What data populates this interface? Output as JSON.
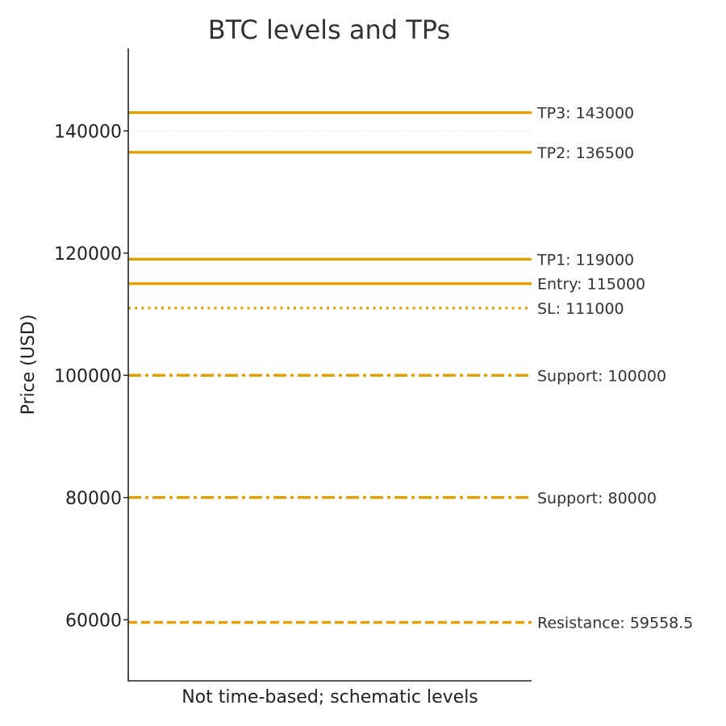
{
  "chart_data": {
    "type": "line",
    "title": "BTC levels and TPs",
    "xlabel": "Not time-based; schematic levels",
    "ylabel": "Price (USD)",
    "ylim": [
      50000,
      153500
    ],
    "yticks": [
      60000,
      80000,
      100000,
      120000,
      140000
    ],
    "ytick_labels": [
      "60000",
      "80000",
      "100000",
      "120000",
      "140000"
    ],
    "grid": "horizontal dotted at y ticks",
    "color": "#E69F00",
    "levels": [
      {
        "label": "TP3: 143000",
        "value": 143000,
        "style": "solid"
      },
      {
        "label": "TP2: 136500",
        "value": 136500,
        "style": "solid"
      },
      {
        "label": "TP1: 119000",
        "value": 119000,
        "style": "solid"
      },
      {
        "label": "Entry: 115000",
        "value": 115000,
        "style": "solid"
      },
      {
        "label": "SL: 111000",
        "value": 111000,
        "style": "dotted"
      },
      {
        "label": "Support: 100000",
        "value": 100000,
        "style": "dashdot"
      },
      {
        "label": "Support: 80000",
        "value": 80000,
        "style": "dashdot"
      },
      {
        "label": "Resistance: 59558.5",
        "value": 59558.5,
        "style": "dashed"
      }
    ]
  }
}
